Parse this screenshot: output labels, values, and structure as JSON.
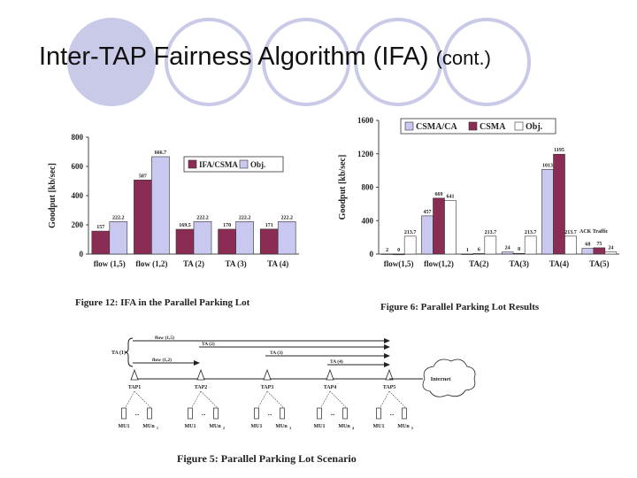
{
  "slide": {
    "title": "Inter-TAP Fairness Algorithm (IFA)",
    "title_suffix": "(cont.)"
  },
  "colors": {
    "maroon": "#8b2c55",
    "lavender": "#c8c8f0",
    "white": "#ffffff",
    "deco": "#c9c9e8"
  },
  "figure12": {
    "caption": "Figure 12: IFA in the Parallel Parking Lot",
    "chart_data": {
      "type": "bar",
      "categories": [
        "flow (1,5)",
        "flow (1,2)",
        "TA (2)",
        "TA (3)",
        "TA (4)"
      ],
      "series": [
        {
          "name": "IFA/CSMA",
          "values": [
            157,
            507,
            169.5,
            170,
            171
          ],
          "labels": [
            "157",
            "507",
            "169.5",
            "170",
            "171"
          ]
        },
        {
          "name": "Obj.",
          "values": [
            222.2,
            666.7,
            222.2,
            222.2,
            222.2
          ],
          "labels": [
            "222.2",
            "666.7",
            "222.2",
            "222.2",
            "222.2"
          ]
        }
      ],
      "ylabel": "Goodput [kb/sec]",
      "ylim": [
        0,
        800
      ],
      "yticks": [
        "0",
        "200",
        "400",
        "600",
        "800"
      ],
      "legend": "top-right"
    }
  },
  "figure6": {
    "caption": "Figure 6: Parallel Parking Lot Results",
    "annotation": "ACK Traffic",
    "chart_data": {
      "type": "bar",
      "categories": [
        "flow(1,5)",
        "flow(1,2)",
        "TA(2)",
        "TA(3)",
        "TA(4)",
        "TA(5)"
      ],
      "series": [
        {
          "name": "CSMA/CA",
          "values": [
            2,
            457,
            1,
            24,
            1013,
            68
          ],
          "labels": [
            "2",
            "457",
            "1",
            "24",
            "1013",
            "68"
          ]
        },
        {
          "name": "CSMA",
          "values": [
            0,
            669,
            6,
            8,
            1195,
            75
          ],
          "labels": [
            "0",
            "669",
            "6",
            "8",
            "1195",
            "75"
          ]
        },
        {
          "name": "Obj.",
          "values": [
            213.7,
            641,
            213.7,
            213.7,
            213.7,
            24
          ],
          "labels": [
            "213.7",
            "641",
            "213.7",
            "213.7",
            "213.7",
            "24"
          ]
        }
      ],
      "ylabel": "Goodput [kb/sec]",
      "ylim": [
        0,
        1600
      ],
      "yticks": [
        "0",
        "400",
        "800",
        "1200",
        "1600"
      ],
      "legend": "top"
    }
  },
  "figure5": {
    "caption": "Figure 5: Parallel Parking Lot Scenario",
    "ta1_label": "TA (1)",
    "flows": [
      "flow (1,5)",
      "TA (2)",
      "TA (3)",
      "flow (1,2)",
      "TA (4)"
    ],
    "taps": [
      "TAP1",
      "TAP2",
      "TAP3",
      "TAP4",
      "TAP5"
    ],
    "mu_labels": [
      "MU1",
      "MUn",
      "MU1",
      "MUn",
      "MU1",
      "MUn",
      "MU1",
      "MUn",
      "MU1",
      "MUn"
    ],
    "mu_subscripts": [
      "1",
      "2",
      "3",
      "4",
      "5"
    ],
    "dots": "...",
    "internet": "Internet"
  }
}
